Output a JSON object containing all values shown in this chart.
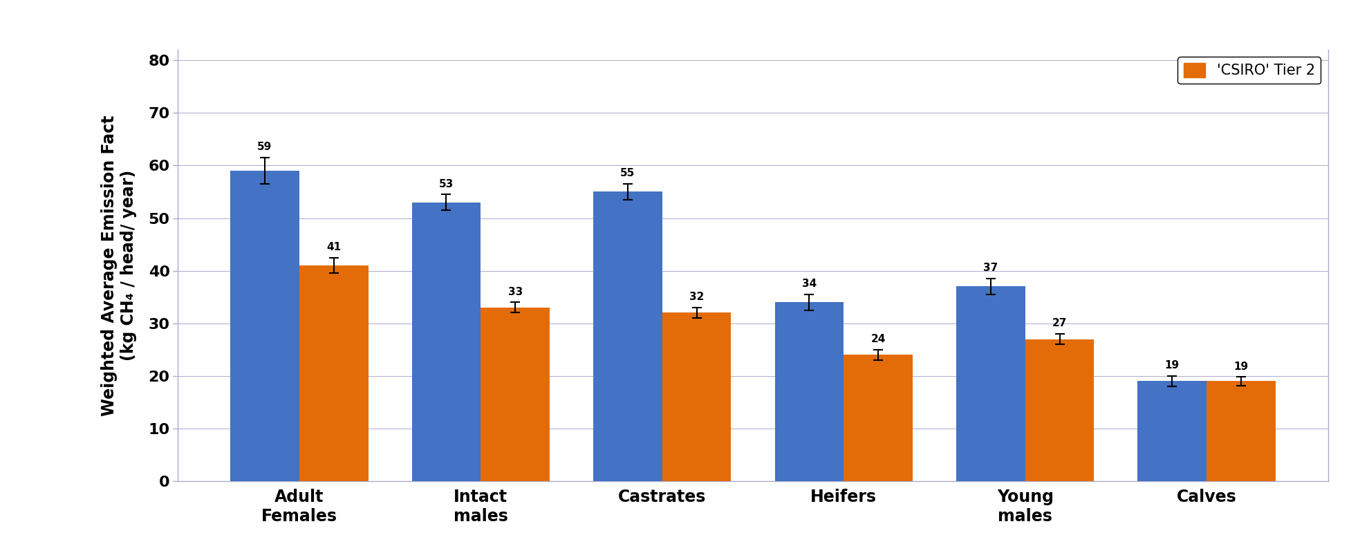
{
  "categories": [
    "Adult\nFemales",
    "Intact\nmales",
    "Castrates",
    "Heifers",
    "Young\nmales",
    "Calves"
  ],
  "ipcc_values": [
    59,
    53,
    55,
    34,
    37,
    19
  ],
  "csiro_values": [
    41,
    33,
    32,
    24,
    27,
    19
  ],
  "ipcc_errors": [
    2.5,
    1.5,
    1.5,
    1.5,
    1.5,
    1.0
  ],
  "csiro_errors": [
    1.5,
    1.0,
    1.0,
    1.0,
    1.0,
    0.8
  ],
  "ipcc_color": "#4472C4",
  "csiro_color": "#E36C09",
  "ylabel_line1": "Weighted Average Emission Fact",
  "ylabel_line2": "(kg CH₄ / head/ year)",
  "ylim": [
    0,
    82
  ],
  "yticks": [
    0,
    10,
    20,
    30,
    40,
    50,
    60,
    70,
    80
  ],
  "legend_label_csiro": "'CSIRO' Tier 2",
  "bar_width": 0.38,
  "tick_fontsize": 16,
  "ylabel_fontsize": 17,
  "annotation_fontsize": 11,
  "xtick_fontsize": 17,
  "background_color": "#FFFFFF",
  "spine_color": "#AAAACC",
  "legend_fontsize": 15
}
